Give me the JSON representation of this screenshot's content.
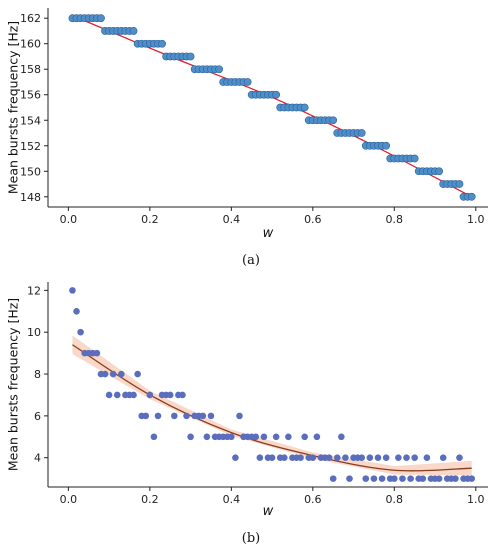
{
  "chart_data": [
    {
      "type": "scatter",
      "caption": "(a)",
      "xlabel": "w",
      "ylabel": "Mean bursts frequency [Hz]",
      "xlim": [
        -0.05,
        1.03
      ],
      "ylim": [
        147.2,
        162.8
      ],
      "xticks": [
        0.0,
        0.2,
        0.4,
        0.6,
        0.8,
        1.0
      ],
      "xtick_labels": [
        "0.0",
        "0.2",
        "0.4",
        "0.6",
        "0.8",
        "1.0"
      ],
      "yticks": [
        148,
        150,
        152,
        154,
        156,
        158,
        160,
        162
      ],
      "ytick_labels": [
        "148",
        "150",
        "152",
        "154",
        "156",
        "158",
        "160",
        "162"
      ],
      "grid": false,
      "point_color": "#4f8fc9",
      "point_edge": "#2d5f99",
      "line_color": "#e0202a",
      "points": [
        [
          0.01,
          162
        ],
        [
          0.02,
          162
        ],
        [
          0.03,
          162
        ],
        [
          0.04,
          162
        ],
        [
          0.05,
          162
        ],
        [
          0.06,
          162
        ],
        [
          0.07,
          162
        ],
        [
          0.08,
          162
        ],
        [
          0.09,
          161
        ],
        [
          0.1,
          161
        ],
        [
          0.11,
          161
        ],
        [
          0.12,
          161
        ],
        [
          0.13,
          161
        ],
        [
          0.14,
          161
        ],
        [
          0.15,
          161
        ],
        [
          0.16,
          161
        ],
        [
          0.17,
          160
        ],
        [
          0.18,
          160
        ],
        [
          0.19,
          160
        ],
        [
          0.2,
          160
        ],
        [
          0.21,
          160
        ],
        [
          0.22,
          160
        ],
        [
          0.23,
          160
        ],
        [
          0.24,
          159
        ],
        [
          0.25,
          159
        ],
        [
          0.26,
          159
        ],
        [
          0.27,
          159
        ],
        [
          0.28,
          159
        ],
        [
          0.29,
          159
        ],
        [
          0.3,
          159
        ],
        [
          0.31,
          158
        ],
        [
          0.32,
          158
        ],
        [
          0.33,
          158
        ],
        [
          0.34,
          158
        ],
        [
          0.35,
          158
        ],
        [
          0.36,
          158
        ],
        [
          0.37,
          158
        ],
        [
          0.38,
          157
        ],
        [
          0.39,
          157
        ],
        [
          0.4,
          157
        ],
        [
          0.41,
          157
        ],
        [
          0.42,
          157
        ],
        [
          0.43,
          157
        ],
        [
          0.44,
          157
        ],
        [
          0.45,
          156
        ],
        [
          0.46,
          156
        ],
        [
          0.47,
          156
        ],
        [
          0.48,
          156
        ],
        [
          0.49,
          156
        ],
        [
          0.5,
          156
        ],
        [
          0.51,
          156
        ],
        [
          0.52,
          155
        ],
        [
          0.53,
          155
        ],
        [
          0.54,
          155
        ],
        [
          0.55,
          155
        ],
        [
          0.56,
          155
        ],
        [
          0.57,
          155
        ],
        [
          0.58,
          155
        ],
        [
          0.59,
          154
        ],
        [
          0.6,
          154
        ],
        [
          0.61,
          154
        ],
        [
          0.62,
          154
        ],
        [
          0.63,
          154
        ],
        [
          0.64,
          154
        ],
        [
          0.65,
          154
        ],
        [
          0.66,
          153
        ],
        [
          0.67,
          153
        ],
        [
          0.68,
          153
        ],
        [
          0.69,
          153
        ],
        [
          0.7,
          153
        ],
        [
          0.71,
          153
        ],
        [
          0.72,
          153
        ],
        [
          0.73,
          152
        ],
        [
          0.74,
          152
        ],
        [
          0.75,
          152
        ],
        [
          0.76,
          152
        ],
        [
          0.77,
          152
        ],
        [
          0.78,
          152
        ],
        [
          0.79,
          151
        ],
        [
          0.8,
          151
        ],
        [
          0.81,
          151
        ],
        [
          0.82,
          151
        ],
        [
          0.83,
          151
        ],
        [
          0.84,
          151
        ],
        [
          0.85,
          151
        ],
        [
          0.86,
          150
        ],
        [
          0.87,
          150
        ],
        [
          0.88,
          150
        ],
        [
          0.89,
          150
        ],
        [
          0.9,
          150
        ],
        [
          0.91,
          150
        ],
        [
          0.92,
          149
        ],
        [
          0.93,
          149
        ],
        [
          0.94,
          149
        ],
        [
          0.95,
          149
        ],
        [
          0.96,
          149
        ],
        [
          0.97,
          148
        ],
        [
          0.98,
          148
        ],
        [
          0.99,
          148
        ]
      ],
      "fit_line": [
        [
          0.01,
          162.2
        ],
        [
          0.25,
          159.0
        ],
        [
          0.5,
          155.8
        ],
        [
          0.75,
          152.0
        ],
        [
          0.99,
          148.0
        ]
      ]
    },
    {
      "type": "scatter",
      "caption": "(b)",
      "xlabel": "w",
      "ylabel": "Mean bursts frequency [Hz]",
      "xlim": [
        -0.05,
        1.03
      ],
      "ylim": [
        2.6,
        12.4
      ],
      "xticks": [
        0.0,
        0.2,
        0.4,
        0.6,
        0.8,
        1.0
      ],
      "xtick_labels": [
        "0.0",
        "0.2",
        "0.4",
        "0.6",
        "0.8",
        "1.0"
      ],
      "yticks": [
        4,
        6,
        8,
        10,
        12
      ],
      "ytick_labels": [
        "4",
        "6",
        "8",
        "10",
        "12"
      ],
      "grid": false,
      "point_color": "#5b6ebd",
      "line_color": "#8b3a1e",
      "band_color": "#f4b89a",
      "points": [
        [
          0.01,
          12
        ],
        [
          0.02,
          11
        ],
        [
          0.03,
          10
        ],
        [
          0.04,
          9
        ],
        [
          0.05,
          9
        ],
        [
          0.06,
          9
        ],
        [
          0.07,
          9
        ],
        [
          0.08,
          8
        ],
        [
          0.09,
          8
        ],
        [
          0.1,
          7
        ],
        [
          0.11,
          8
        ],
        [
          0.12,
          7
        ],
        [
          0.13,
          8
        ],
        [
          0.14,
          7
        ],
        [
          0.15,
          7
        ],
        [
          0.16,
          7
        ],
        [
          0.17,
          8
        ],
        [
          0.18,
          6
        ],
        [
          0.19,
          6
        ],
        [
          0.2,
          7
        ],
        [
          0.21,
          5
        ],
        [
          0.22,
          6
        ],
        [
          0.23,
          7
        ],
        [
          0.24,
          7
        ],
        [
          0.25,
          7
        ],
        [
          0.26,
          6
        ],
        [
          0.27,
          7
        ],
        [
          0.28,
          7
        ],
        [
          0.29,
          6
        ],
        [
          0.3,
          5
        ],
        [
          0.31,
          6
        ],
        [
          0.32,
          6
        ],
        [
          0.33,
          6
        ],
        [
          0.34,
          5
        ],
        [
          0.35,
          6
        ],
        [
          0.36,
          5
        ],
        [
          0.37,
          5
        ],
        [
          0.38,
          5
        ],
        [
          0.39,
          5
        ],
        [
          0.4,
          5
        ],
        [
          0.41,
          4
        ],
        [
          0.42,
          6
        ],
        [
          0.43,
          5
        ],
        [
          0.44,
          5
        ],
        [
          0.45,
          5
        ],
        [
          0.46,
          5
        ],
        [
          0.47,
          4
        ],
        [
          0.48,
          5
        ],
        [
          0.49,
          4
        ],
        [
          0.5,
          4
        ],
        [
          0.51,
          5
        ],
        [
          0.52,
          4
        ],
        [
          0.53,
          4
        ],
        [
          0.54,
          5
        ],
        [
          0.55,
          4
        ],
        [
          0.56,
          4
        ],
        [
          0.57,
          4
        ],
        [
          0.58,
          5
        ],
        [
          0.59,
          4
        ],
        [
          0.6,
          4
        ],
        [
          0.61,
          5
        ],
        [
          0.62,
          4
        ],
        [
          0.63,
          4
        ],
        [
          0.64,
          4
        ],
        [
          0.65,
          3
        ],
        [
          0.66,
          4
        ],
        [
          0.67,
          5
        ],
        [
          0.68,
          4
        ],
        [
          0.69,
          3
        ],
        [
          0.7,
          4
        ],
        [
          0.71,
          4
        ],
        [
          0.72,
          4
        ],
        [
          0.73,
          3
        ],
        [
          0.74,
          4
        ],
        [
          0.75,
          3
        ],
        [
          0.76,
          4
        ],
        [
          0.77,
          3
        ],
        [
          0.78,
          4
        ],
        [
          0.79,
          3
        ],
        [
          0.8,
          3
        ],
        [
          0.81,
          4
        ],
        [
          0.82,
          3
        ],
        [
          0.83,
          4
        ],
        [
          0.84,
          3
        ],
        [
          0.85,
          4
        ],
        [
          0.86,
          3
        ],
        [
          0.87,
          3
        ],
        [
          0.88,
          4
        ],
        [
          0.89,
          3
        ],
        [
          0.9,
          3
        ],
        [
          0.91,
          3
        ],
        [
          0.92,
          4
        ],
        [
          0.93,
          3
        ],
        [
          0.94,
          3
        ],
        [
          0.95,
          3
        ],
        [
          0.96,
          4
        ],
        [
          0.97,
          3
        ],
        [
          0.98,
          3
        ],
        [
          0.99,
          3
        ]
      ],
      "fit_line": [
        [
          0.01,
          9.4
        ],
        [
          0.2,
          7.0
        ],
        [
          0.4,
          5.2
        ],
        [
          0.6,
          4.1
        ],
        [
          0.8,
          3.4
        ],
        [
          0.99,
          3.5
        ]
      ],
      "fit_band_width": [
        0.45,
        0.2,
        0.15,
        0.15,
        0.2,
        0.35
      ]
    }
  ]
}
